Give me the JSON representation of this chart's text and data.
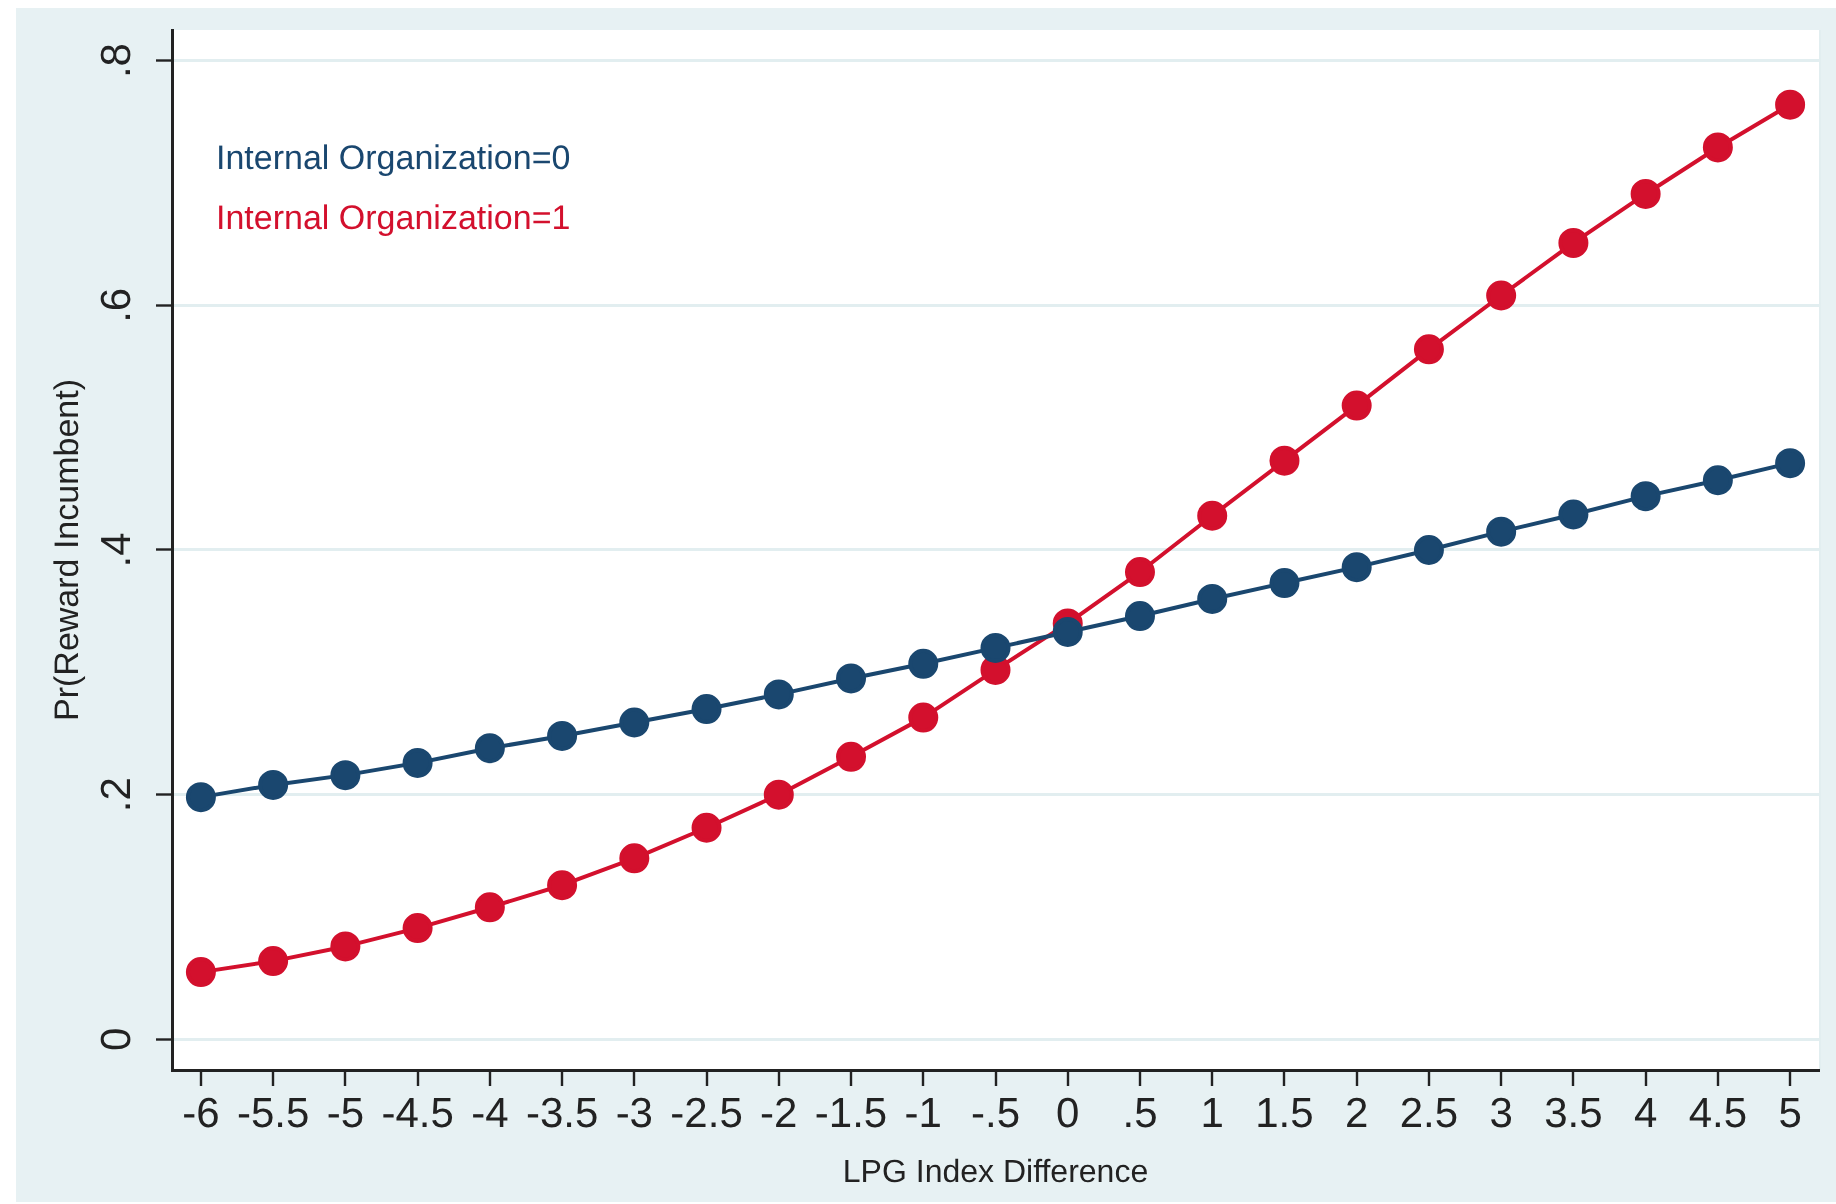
{
  "chart_data": {
    "type": "line",
    "xlabel": "LPG Index Difference",
    "ylabel": "Pr(Reward Incumbent)",
    "x": [
      -6,
      -5.5,
      -5,
      -4.5,
      -4,
      -3.5,
      -3,
      -2.5,
      -2,
      -1.5,
      -1,
      -0.5,
      0,
      0.5,
      1,
      1.5,
      2,
      2.5,
      3,
      3.5,
      4,
      4.5,
      5
    ],
    "series": [
      {
        "name": "Internal Organization=0",
        "color": "#1a476f",
        "values": [
          0.198,
          0.208,
          0.216,
          0.226,
          0.238,
          0.248,
          0.259,
          0.27,
          0.282,
          0.295,
          0.307,
          0.32,
          0.333,
          0.346,
          0.36,
          0.373,
          0.386,
          0.4,
          0.415,
          0.429,
          0.444,
          0.457,
          0.471
        ]
      },
      {
        "name": "Internal Organization=1",
        "color": "#d3102d",
        "values": [
          0.055,
          0.064,
          0.076,
          0.091,
          0.108,
          0.126,
          0.148,
          0.173,
          0.2,
          0.231,
          0.263,
          0.302,
          0.34,
          0.382,
          0.428,
          0.473,
          0.518,
          0.564,
          0.608,
          0.651,
          0.691,
          0.729,
          0.764
        ]
      }
    ],
    "xlim": [
      -6.2,
      5.2
    ],
    "xticks": [
      -6,
      -5.5,
      -5,
      -4.5,
      -4,
      -3.5,
      -3,
      -2.5,
      -2,
      -1.5,
      -1,
      {
        "value": -0.5,
        "label": "-.5"
      },
      0,
      {
        "value": 0.5,
        "label": ".5"
      },
      1,
      1.5,
      2,
      2.5,
      3,
      3.5,
      4,
      4.5,
      5
    ],
    "ylim": [
      -0.025,
      0.825
    ],
    "yticks": [
      0,
      {
        "value": 0.2,
        "label": ".2"
      },
      {
        "value": 0.4,
        "label": ".4"
      },
      {
        "value": 0.6,
        "label": ".6"
      },
      {
        "value": 0.8,
        "label": ".8"
      }
    ],
    "grid": "y",
    "legend": "top left",
    "marker": "circle",
    "line_style": "solid"
  }
}
